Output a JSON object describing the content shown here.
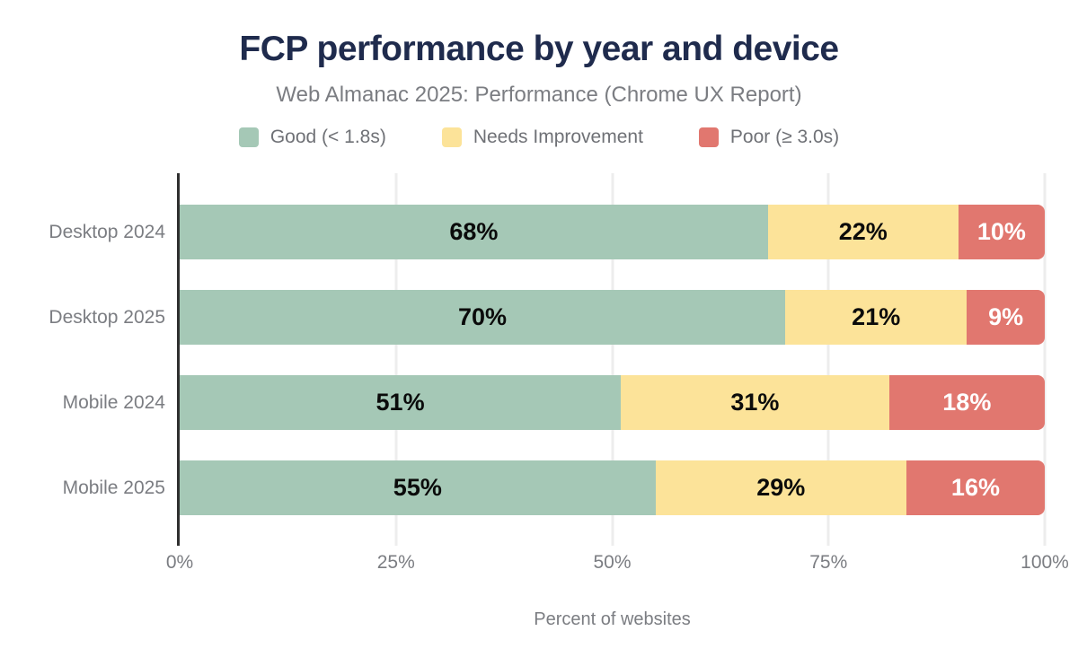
{
  "colors": {
    "title": "#1f2b4d",
    "muted": "#7b7d82",
    "legend": "#6f7176",
    "axis": "#2f2f2f",
    "grid": "#ededed"
  },
  "chart_data": {
    "type": "bar",
    "orientation": "horizontal",
    "stacked": true,
    "title": "FCP performance by year and device",
    "subtitle": "Web Almanac 2025: Performance (Chrome UX Report)",
    "categories": [
      "Desktop 2024",
      "Desktop 2025",
      "Mobile 2024",
      "Mobile 2025"
    ],
    "series": [
      {
        "key": "good",
        "name": "Good (< 1.8s)",
        "color": "#a5c8b6",
        "value_text_color": "#0b0b0b",
        "values": [
          68,
          70,
          51,
          55
        ]
      },
      {
        "key": "needs-improvement",
        "name": "Needs Improvement",
        "color": "#fce399",
        "value_text_color": "#0b0b0b",
        "values": [
          22,
          21,
          31,
          29
        ]
      },
      {
        "key": "poor",
        "name": "Poor (≥ 3.0s)",
        "color": "#e1776f",
        "value_text_color": "#ffffff",
        "values": [
          10,
          9,
          18,
          16
        ]
      }
    ],
    "value_suffix": "%",
    "xlabel": "Percent of websites",
    "xlim": [
      0,
      100
    ],
    "xticks": [
      {
        "value": 0,
        "label": "0%"
      },
      {
        "value": 25,
        "label": "25%"
      },
      {
        "value": 50,
        "label": "50%"
      },
      {
        "value": 75,
        "label": "75%"
      },
      {
        "value": 100,
        "label": "100%"
      }
    ],
    "legend_position": "top",
    "grid": "vertical"
  }
}
